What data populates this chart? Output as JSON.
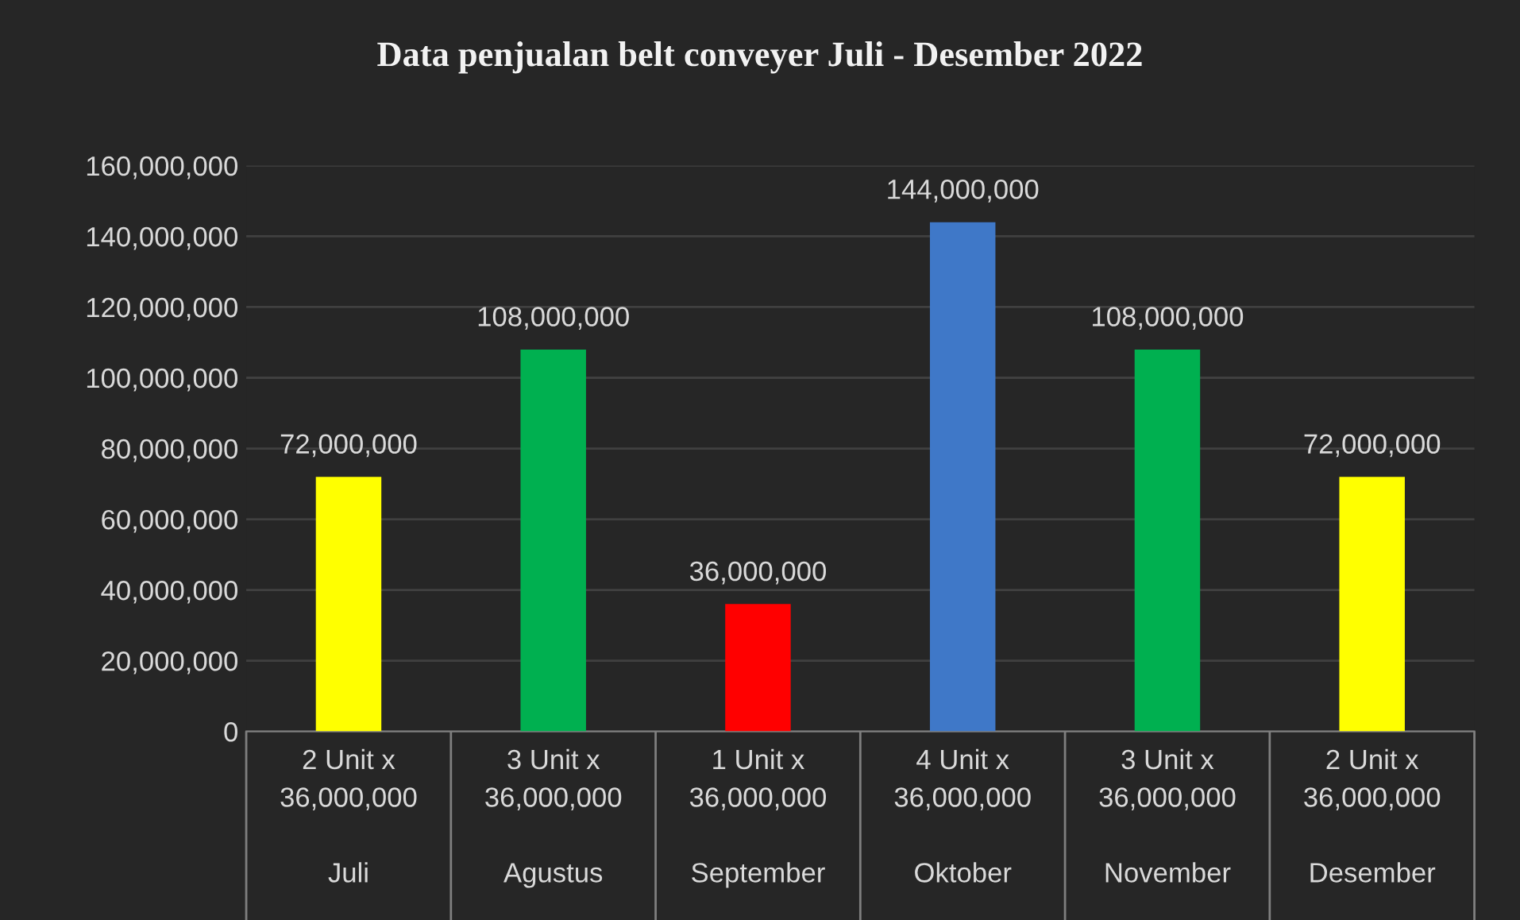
{
  "chart_data": {
    "type": "bar",
    "title": "Data penjualan belt conveyer Juli - Desember 2022",
    "categories": [
      "2 Unit x\n36,000,000\n\nJuli",
      "3 Unit x\n36,000,000\n\nAgustus",
      "1 Unit x\n36,000,000\n\nSeptember",
      "4 Unit x\n36,000,000\n\nOktober",
      "3 Unit x\n36,000,000\n\nNovember",
      "2 Unit x\n36,000,000\n\nDesember"
    ],
    "values": [
      72000000,
      108000000,
      36000000,
      144000000,
      108000000,
      72000000
    ],
    "colors": [
      "#ffff00",
      "#00b050",
      "#ff0000",
      "#3f78c8",
      "#00b050",
      "#ffff00"
    ],
    "ylim": [
      0,
      160000000
    ],
    "yticks": [
      {
        "value": 0,
        "label": "0"
      },
      {
        "value": 20000000,
        "label": "20,000,000"
      },
      {
        "value": 40000000,
        "label": "40,000,000"
      },
      {
        "value": 60000000,
        "label": "60,000,000"
      },
      {
        "value": 80000000,
        "label": "80,000,000"
      },
      {
        "value": 100000000,
        "label": "100,000,000"
      },
      {
        "value": 120000000,
        "label": "120,000,000"
      },
      {
        "value": 140000000,
        "label": "140,000,000"
      },
      {
        "value": 160000000,
        "label": "160,000,000"
      }
    ],
    "value_labels": [
      "72,000,000",
      "108,000,000",
      "36,000,000",
      "144,000,000",
      "108,000,000",
      "72,000,000"
    ],
    "grid": "y",
    "legend": false
  }
}
